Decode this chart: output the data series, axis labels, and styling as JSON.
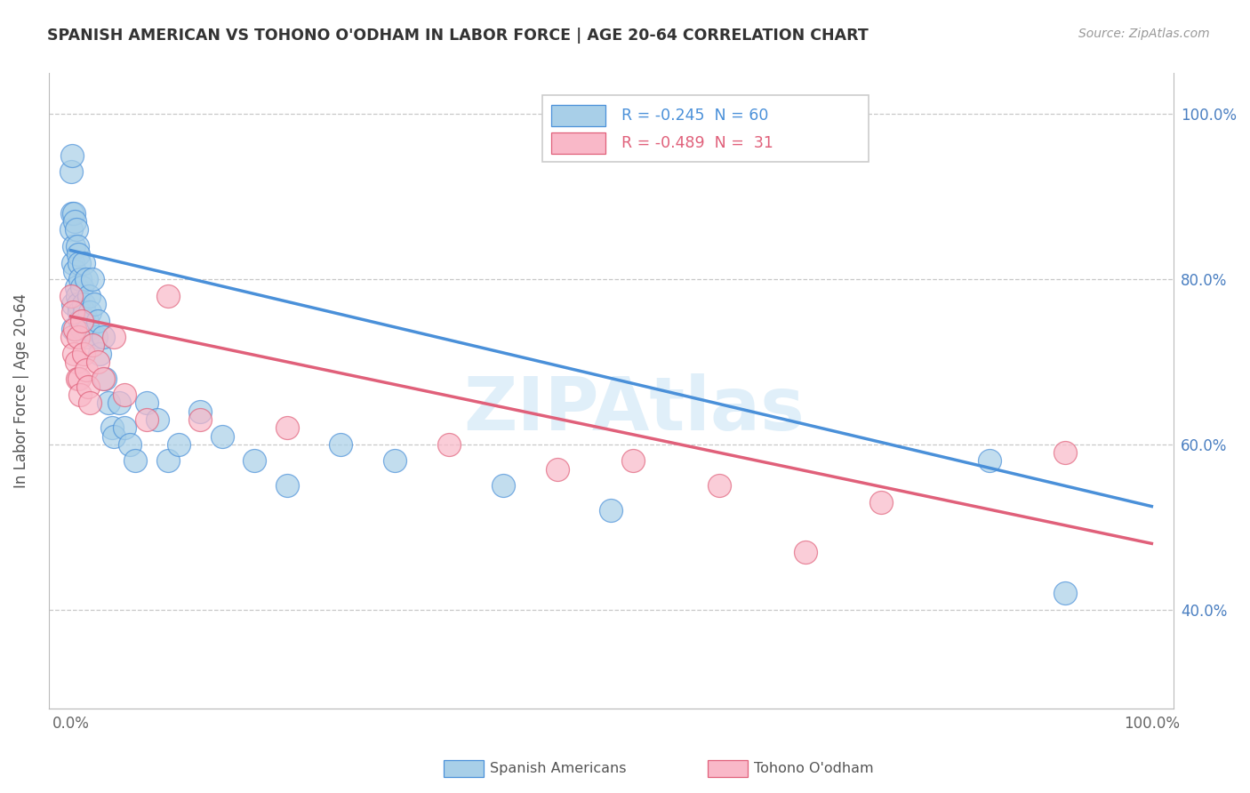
{
  "title": "SPANISH AMERICAN VS TOHONO O'ODHAM IN LABOR FORCE | AGE 20-64 CORRELATION CHART",
  "source": "Source: ZipAtlas.com",
  "ylabel": "In Labor Force | Age 20-64",
  "legend_r1": "R = -0.245",
  "legend_n1": "N = 60",
  "legend_r2": "R = -0.489",
  "legend_n2": "N =  31",
  "color_blue": "#a8cfe8",
  "color_pink": "#f9b8c8",
  "line_blue": "#4a90d9",
  "line_pink": "#e0607a",
  "watermark": "ZIPAtlas",
  "background_color": "#ffffff",
  "grid_color": "#c8c8c8",
  "blue_x": [
    0.0,
    0.0,
    0.001,
    0.001,
    0.002,
    0.002,
    0.002,
    0.003,
    0.003,
    0.004,
    0.004,
    0.005,
    0.005,
    0.006,
    0.006,
    0.007,
    0.007,
    0.008,
    0.008,
    0.009,
    0.009,
    0.01,
    0.01,
    0.012,
    0.012,
    0.013,
    0.014,
    0.015,
    0.015,
    0.016,
    0.017,
    0.018,
    0.02,
    0.022,
    0.023,
    0.025,
    0.027,
    0.03,
    0.032,
    0.035,
    0.038,
    0.04,
    0.045,
    0.05,
    0.055,
    0.06,
    0.07,
    0.08,
    0.09,
    0.1,
    0.12,
    0.14,
    0.17,
    0.2,
    0.25,
    0.3,
    0.4,
    0.5,
    0.85,
    0.92
  ],
  "blue_y": [
    0.93,
    0.86,
    0.95,
    0.88,
    0.82,
    0.77,
    0.74,
    0.88,
    0.84,
    0.87,
    0.81,
    0.86,
    0.79,
    0.84,
    0.78,
    0.83,
    0.77,
    0.82,
    0.76,
    0.8,
    0.75,
    0.79,
    0.74,
    0.82,
    0.77,
    0.76,
    0.8,
    0.75,
    0.73,
    0.74,
    0.78,
    0.76,
    0.8,
    0.77,
    0.73,
    0.75,
    0.71,
    0.73,
    0.68,
    0.65,
    0.62,
    0.61,
    0.65,
    0.62,
    0.6,
    0.58,
    0.65,
    0.63,
    0.58,
    0.6,
    0.64,
    0.61,
    0.58,
    0.55,
    0.6,
    0.58,
    0.55,
    0.52,
    0.58,
    0.42
  ],
  "pink_x": [
    0.0,
    0.001,
    0.002,
    0.003,
    0.004,
    0.005,
    0.006,
    0.007,
    0.008,
    0.009,
    0.01,
    0.012,
    0.014,
    0.016,
    0.018,
    0.02,
    0.025,
    0.03,
    0.04,
    0.05,
    0.07,
    0.09,
    0.12,
    0.2,
    0.35,
    0.45,
    0.52,
    0.6,
    0.68,
    0.75,
    0.92
  ],
  "pink_y": [
    0.78,
    0.73,
    0.76,
    0.71,
    0.74,
    0.7,
    0.68,
    0.73,
    0.68,
    0.66,
    0.75,
    0.71,
    0.69,
    0.67,
    0.65,
    0.72,
    0.7,
    0.68,
    0.73,
    0.66,
    0.63,
    0.78,
    0.63,
    0.62,
    0.6,
    0.57,
    0.58,
    0.55,
    0.47,
    0.53,
    0.59
  ],
  "ylim_low": 0.28,
  "ylim_high": 1.05,
  "xlim_low": -0.02,
  "xlim_high": 1.02
}
